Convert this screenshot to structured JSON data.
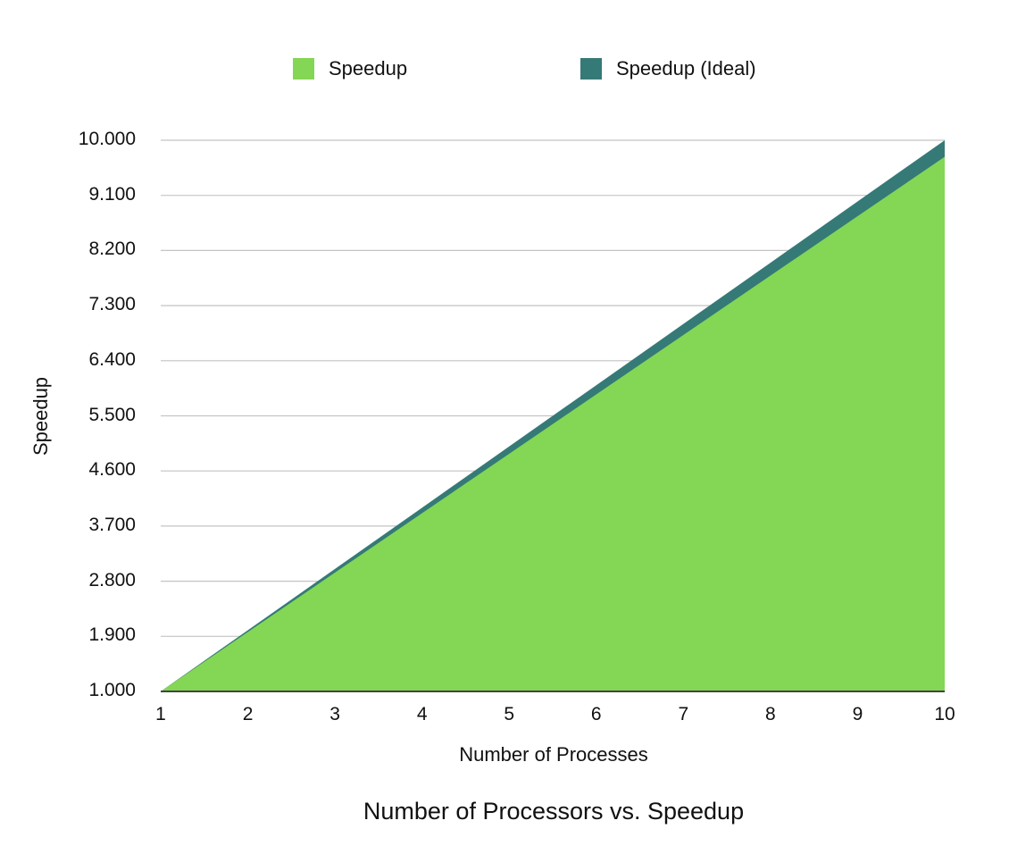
{
  "legend": {
    "items": [
      {
        "label": "Speedup",
        "color": "#84d655"
      },
      {
        "label": "Speedup (Ideal)",
        "color": "#357a77"
      }
    ]
  },
  "axes": {
    "xlabel": "Number of Processes",
    "ylabel": "Speedup",
    "yticks": [
      "10.000",
      "9.100",
      "8.200",
      "7.300",
      "6.400",
      "5.500",
      "4.600",
      "3.700",
      "2.800",
      "1.900",
      "1.000"
    ],
    "xticks": [
      "1",
      "2",
      "3",
      "4",
      "5",
      "6",
      "7",
      "8",
      "9",
      "10"
    ]
  },
  "title": "Number of Processors vs. Speedup",
  "chart_data": {
    "type": "area",
    "title": "Number of Processors vs. Speedup",
    "xlabel": "Number of Processes",
    "ylabel": "Speedup",
    "x": [
      1,
      2,
      3,
      4,
      5,
      6,
      7,
      8,
      9,
      10
    ],
    "series": [
      {
        "name": "Speedup (Ideal)",
        "color": "#357a77",
        "values": [
          1,
          2,
          3,
          4,
          5,
          6,
          7,
          8,
          9,
          10
        ]
      },
      {
        "name": "Speedup",
        "color": "#84d655",
        "values": [
          1,
          1.97,
          2.94,
          3.91,
          4.88,
          5.85,
          6.82,
          7.79,
          8.76,
          9.73
        ]
      }
    ],
    "ylim": [
      1,
      10
    ],
    "yticks": [
      1.0,
      1.9,
      2.8,
      3.7,
      4.6,
      5.5,
      6.4,
      7.3,
      8.2,
      9.1,
      10.0
    ],
    "grid": true,
    "legend_position": "top"
  }
}
